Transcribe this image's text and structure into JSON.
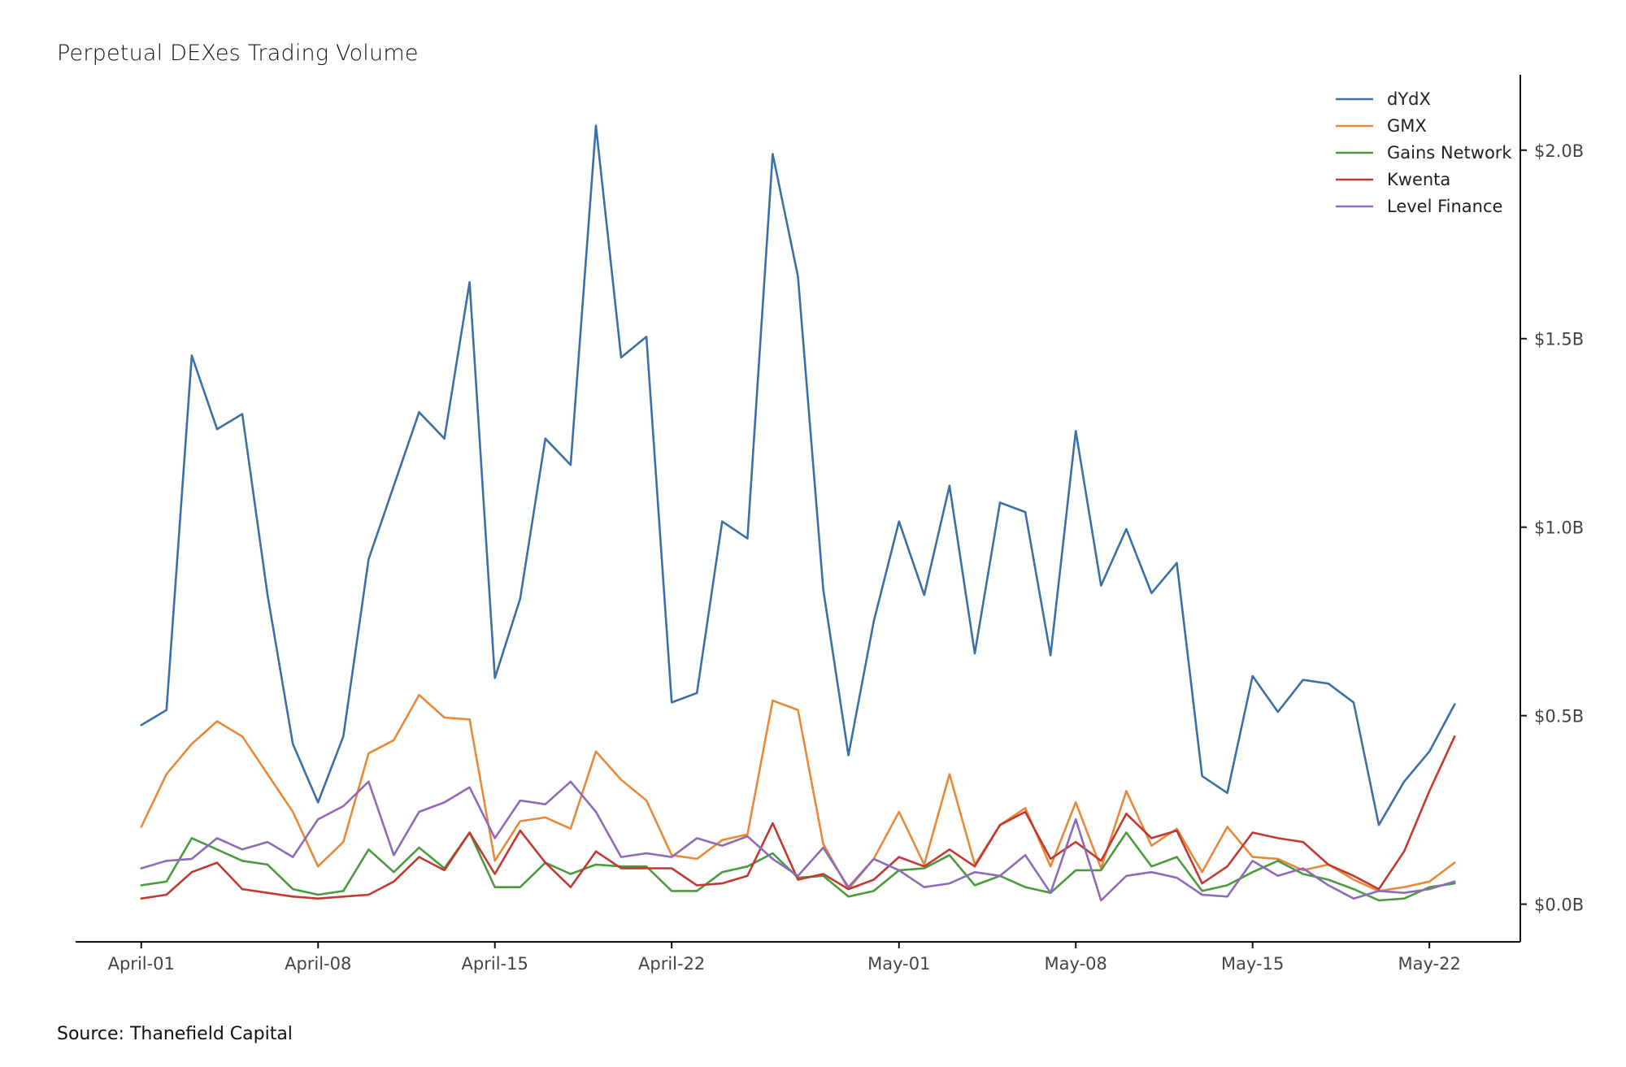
{
  "chart_data": {
    "type": "line",
    "title": "Perpetual DEXes Trading Volume",
    "source": "Source: Thanefield Capital",
    "xlabel": "",
    "ylabel": "",
    "x_start": "2023-04-01",
    "x_tick_labels": [
      "April-01",
      "April-08",
      "April-15",
      "April-22",
      "May-01",
      "May-08",
      "May-15",
      "May-22"
    ],
    "x_tick_day_index": [
      0,
      7,
      14,
      21,
      30,
      37,
      44,
      51
    ],
    "y_tick_labels": [
      "$0.0B",
      "$0.5B",
      "$1.0B",
      "$1.5B",
      "$2.0B"
    ],
    "y_tick_values": [
      0,
      0.5,
      1.0,
      1.5,
      2.0
    ],
    "ylim": [
      -0.1,
      2.2
    ],
    "xlim": [
      -2.6,
      54.6
    ],
    "y_axis_side": "right",
    "legend_position": "top-right",
    "series": [
      {
        "name": "dYdX",
        "color": "#3a70a6",
        "values": [
          0.475,
          0.515,
          1.455,
          1.26,
          1.3,
          0.82,
          0.425,
          0.27,
          0.445,
          0.915,
          1.11,
          1.305,
          1.235,
          1.65,
          0.6,
          0.81,
          1.235,
          1.165,
          2.065,
          1.45,
          1.505,
          0.535,
          0.56,
          1.015,
          0.97,
          1.99,
          1.665,
          0.835,
          0.395,
          0.75,
          1.015,
          0.82,
          1.11,
          0.665,
          1.065,
          1.04,
          0.66,
          1.255,
          0.845,
          0.995,
          0.825,
          0.905,
          0.34,
          0.295,
          0.605,
          0.51,
          0.595,
          0.585,
          0.535,
          0.21,
          0.325,
          0.405,
          0.53
        ]
      },
      {
        "name": "GMX",
        "color": "#e8893a",
        "values": [
          0.205,
          0.345,
          0.425,
          0.485,
          0.445,
          0.345,
          0.245,
          0.1,
          0.165,
          0.4,
          0.435,
          0.555,
          0.495,
          0.49,
          0.115,
          0.22,
          0.23,
          0.2,
          0.405,
          0.33,
          0.275,
          0.13,
          0.12,
          0.17,
          0.185,
          0.54,
          0.515,
          0.16,
          0.04,
          0.12,
          0.245,
          0.105,
          0.345,
          0.105,
          0.21,
          0.255,
          0.1,
          0.27,
          0.095,
          0.3,
          0.155,
          0.2,
          0.085,
          0.205,
          0.125,
          0.12,
          0.09,
          0.105,
          0.065,
          0.035,
          0.045,
          0.06,
          0.11
        ]
      },
      {
        "name": "Gains Network",
        "color": "#4a9a3e",
        "values": [
          0.05,
          0.06,
          0.175,
          0.145,
          0.115,
          0.105,
          0.04,
          0.025,
          0.035,
          0.145,
          0.085,
          0.15,
          0.095,
          0.19,
          0.045,
          0.045,
          0.11,
          0.08,
          0.105,
          0.1,
          0.1,
          0.035,
          0.035,
          0.085,
          0.1,
          0.135,
          0.07,
          0.075,
          0.02,
          0.035,
          0.09,
          0.095,
          0.13,
          0.05,
          0.075,
          0.045,
          0.03,
          0.09,
          0.09,
          0.19,
          0.1,
          0.125,
          0.035,
          0.05,
          0.085,
          0.115,
          0.08,
          0.065,
          0.04,
          0.01,
          0.015,
          0.045,
          0.055
        ]
      },
      {
        "name": "Kwenta",
        "color": "#c03a32",
        "values": [
          0.015,
          0.025,
          0.085,
          0.11,
          0.04,
          0.03,
          0.02,
          0.015,
          0.02,
          0.025,
          0.06,
          0.125,
          0.09,
          0.19,
          0.08,
          0.195,
          0.11,
          0.045,
          0.14,
          0.095,
          0.095,
          0.095,
          0.05,
          0.055,
          0.075,
          0.215,
          0.065,
          0.08,
          0.04,
          0.065,
          0.125,
          0.1,
          0.145,
          0.1,
          0.21,
          0.245,
          0.12,
          0.165,
          0.115,
          0.24,
          0.175,
          0.195,
          0.055,
          0.1,
          0.19,
          0.175,
          0.165,
          0.105,
          0.075,
          0.04,
          0.14,
          0.3,
          0.445
        ]
      },
      {
        "name": "Level Finance",
        "color": "#8e6bb8",
        "values": [
          0.095,
          0.115,
          0.12,
          0.175,
          0.145,
          0.165,
          0.125,
          0.225,
          0.26,
          0.325,
          0.13,
          0.245,
          0.27,
          0.31,
          0.175,
          0.275,
          0.265,
          0.325,
          0.245,
          0.125,
          0.135,
          0.125,
          0.175,
          0.155,
          0.18,
          0.12,
          0.075,
          0.15,
          0.045,
          0.12,
          0.09,
          0.045,
          0.055,
          0.085,
          0.075,
          0.13,
          0.03,
          0.225,
          0.01,
          0.075,
          0.085,
          0.07,
          0.025,
          0.02,
          0.115,
          0.075,
          0.095,
          0.05,
          0.015,
          0.035,
          0.03,
          0.04,
          0.06
        ]
      }
    ]
  }
}
